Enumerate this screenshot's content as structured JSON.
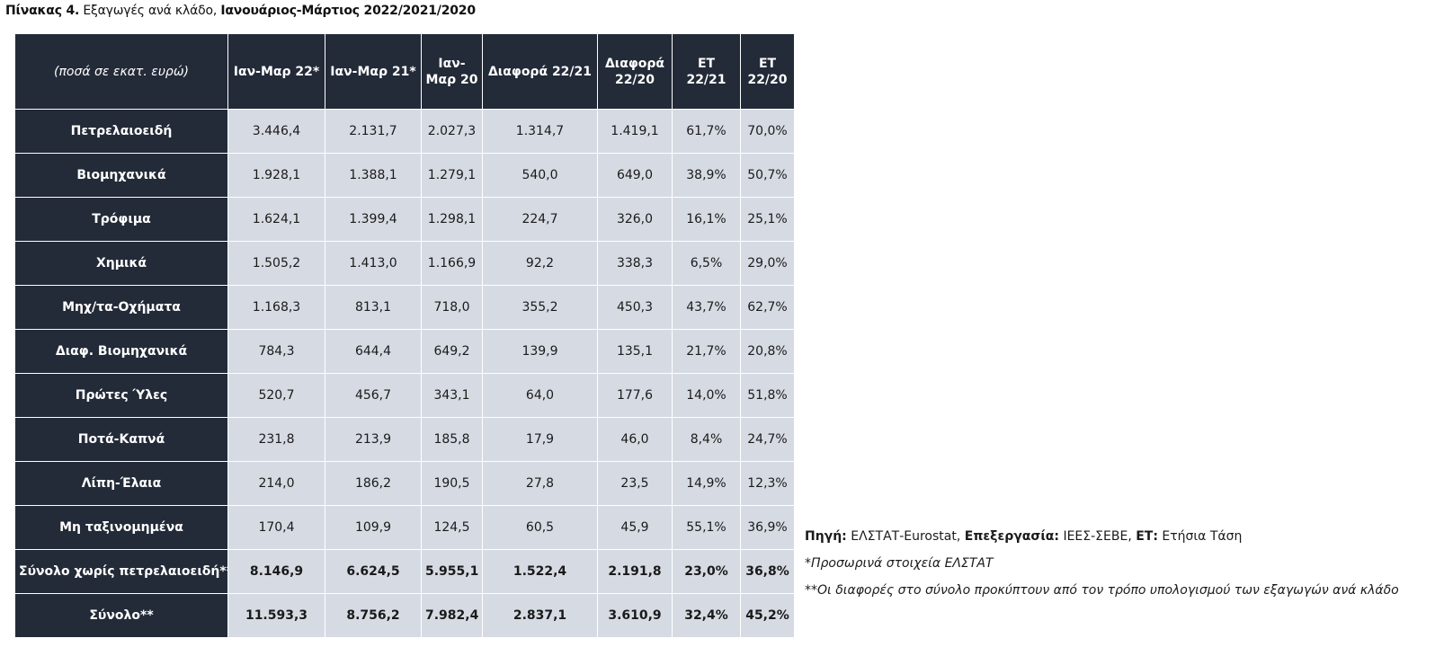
{
  "title": {
    "prefix": "Πίνακας 4.",
    "text": "Εξαγωγές ανά κλάδο,",
    "period": "Ιανουάριος-Μάρτιος 2022/2021/2020"
  },
  "table": {
    "headers": [
      "(ποσά σε εκατ. ευρώ)",
      "Ιαν-Μαρ 22*",
      "Ιαν-Μαρ 21*",
      "Ιαν-Μαρ 20",
      "Διαφορά 22/21",
      "Διαφορά 22/20",
      "ΕΤ 22/21",
      "ΕΤ 22/20"
    ],
    "rows": [
      {
        "label": "Πετρελαιοειδή",
        "values": [
          "3.446,4",
          "2.131,7",
          "2.027,3",
          "1.314,7",
          "1.419,1",
          "61,7%",
          "70,0%"
        ]
      },
      {
        "label": "Βιομηχανικά",
        "values": [
          "1.928,1",
          "1.388,1",
          "1.279,1",
          "540,0",
          "649,0",
          "38,9%",
          "50,7%"
        ]
      },
      {
        "label": "Τρόφιμα",
        "values": [
          "1.624,1",
          "1.399,4",
          "1.298,1",
          "224,7",
          "326,0",
          "16,1%",
          "25,1%"
        ]
      },
      {
        "label": "Χημικά",
        "values": [
          "1.505,2",
          "1.413,0",
          "1.166,9",
          "92,2",
          "338,3",
          "6,5%",
          "29,0%"
        ]
      },
      {
        "label": "Μηχ/τα-Οχήματα",
        "values": [
          "1.168,3",
          "813,1",
          "718,0",
          "355,2",
          "450,3",
          "43,7%",
          "62,7%"
        ]
      },
      {
        "label": "Διαφ. Βιομηχανικά",
        "values": [
          "784,3",
          "644,4",
          "649,2",
          "139,9",
          "135,1",
          "21,7%",
          "20,8%"
        ]
      },
      {
        "label": "Πρώτες Ύλες",
        "values": [
          "520,7",
          "456,7",
          "343,1",
          "64,0",
          "177,6",
          "14,0%",
          "51,8%"
        ]
      },
      {
        "label": "Ποτά-Καπνά",
        "values": [
          "231,8",
          "213,9",
          "185,8",
          "17,9",
          "46,0",
          "8,4%",
          "24,7%"
        ]
      },
      {
        "label": "Λίπη-Έλαια",
        "values": [
          "214,0",
          "186,2",
          "190,5",
          "27,8",
          "23,5",
          "14,9%",
          "12,3%"
        ]
      },
      {
        "label": "Μη ταξινομημένα",
        "values": [
          "170,4",
          "109,9",
          "124,5",
          "60,5",
          "45,9",
          "55,1%",
          "36,9%"
        ]
      },
      {
        "label": "Σύνολο χωρίς πετρελαιοειδή**",
        "values": [
          "8.146,9",
          "6.624,5",
          "5.955,1",
          "1.522,4",
          "2.191,8",
          "23,0%",
          "36,8%"
        ],
        "total": true
      },
      {
        "label": "Σύνολο**",
        "values": [
          "11.593,3",
          "8.756,2",
          "7.982,4",
          "2.837,1",
          "3.610,9",
          "32,4%",
          "45,2%"
        ],
        "total": true
      }
    ]
  },
  "notes": {
    "source_label": "Πηγή:",
    "source_value": "ΕΛΣΤΑΤ-Eurostat,",
    "processing_label": "Επεξεργασία:",
    "processing_value": "ΙΕΕΣ-ΣΕΒΕ,",
    "et_label": "ΕΤ:",
    "et_value": "Ετήσια Τάση",
    "provisional": "*Προσωρινά στοιχεία ΕΛΣΤΑΤ",
    "differences": "**Οι διαφορές στο σύνολο προκύπτουν από τον τρόπο υπολογισμού των εξαγωγών ανά κλάδο"
  },
  "colors": {
    "header_bg": "#232a38",
    "cell_bg": "#d6dbe3",
    "border": "#ffffff"
  }
}
